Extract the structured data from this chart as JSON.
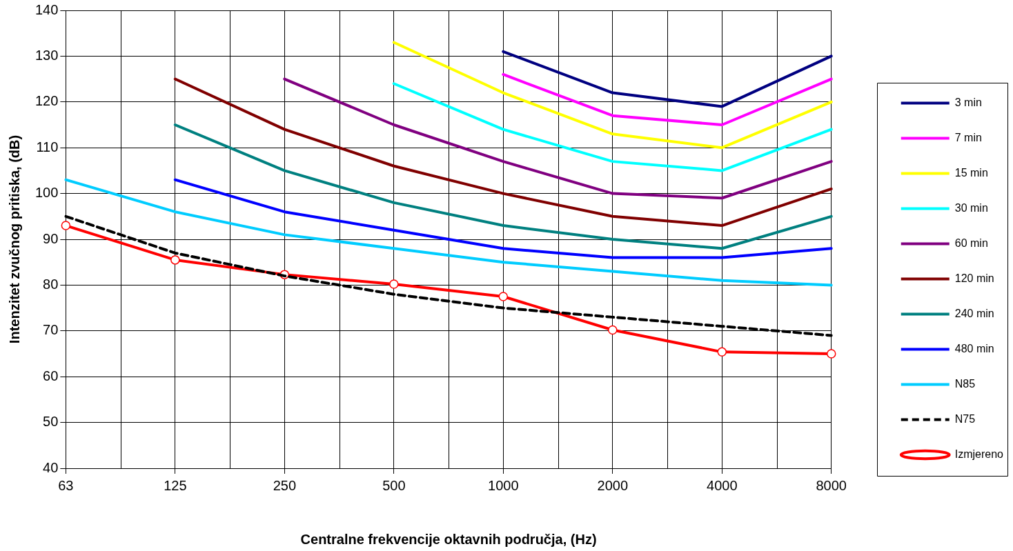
{
  "chart_data": {
    "type": "line",
    "xlabel": "Centralne frekvencije oktavnih područja, (Hz)",
    "ylabel": "Intenzitet zvučnog pritiska, (dB)",
    "categories": [
      "63",
      "125",
      "250",
      "500",
      "1000",
      "2000",
      "4000",
      "8000"
    ],
    "ylim": [
      40,
      140
    ],
    "yticks": [
      40,
      50,
      60,
      70,
      80,
      90,
      100,
      110,
      120,
      130,
      140
    ],
    "grid": true,
    "legend": "right",
    "marker": "none",
    "line_style": "solid",
    "series": [
      {
        "name": "3 min",
        "color": "#000080",
        "values": [
          null,
          null,
          null,
          null,
          131,
          122,
          119,
          130
        ]
      },
      {
        "name": "7 min",
        "color": "#ff00ff",
        "values": [
          null,
          null,
          null,
          null,
          126,
          117,
          115,
          125
        ]
      },
      {
        "name": "15 min",
        "color": "#ffff00",
        "values": [
          null,
          null,
          null,
          133,
          122,
          113,
          110,
          120
        ]
      },
      {
        "name": "30 min",
        "color": "#00ffff",
        "values": [
          null,
          null,
          null,
          124,
          114,
          107,
          105,
          114
        ]
      },
      {
        "name": "60 min",
        "color": "#800080",
        "values": [
          null,
          null,
          125,
          115,
          107,
          100,
          99,
          107
        ]
      },
      {
        "name": "120 min",
        "color": "#800000",
        "values": [
          null,
          125,
          114,
          106,
          100,
          95,
          93,
          101
        ]
      },
      {
        "name": "240 min",
        "color": "#008080",
        "values": [
          null,
          115,
          105,
          98,
          93,
          90,
          88,
          95
        ]
      },
      {
        "name": "480 min",
        "color": "#0000ff",
        "values": [
          null,
          103,
          96,
          92,
          88,
          86,
          86,
          88
        ]
      },
      {
        "name": "N85",
        "color": "#00ccff",
        "values": [
          103,
          96,
          91,
          88,
          85,
          83,
          81,
          80
        ]
      },
      {
        "name": "N75",
        "color": "#000000",
        "line_style": "dashed",
        "values": [
          95,
          87,
          82,
          78,
          75,
          73,
          71,
          69
        ]
      },
      {
        "name": "Izmjereno",
        "color": "#ff0000",
        "marker": "circle",
        "values": [
          93,
          85.5,
          82.3,
          80.2,
          77.5,
          70.2,
          65.4,
          65
        ]
      }
    ]
  }
}
